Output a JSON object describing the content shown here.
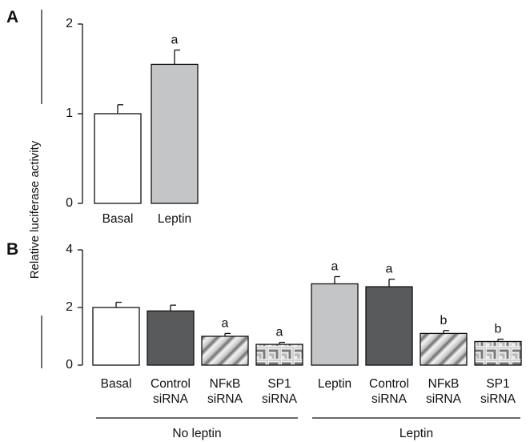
{
  "figure": {
    "ylabel": "Relative luciferase activity"
  },
  "chart_data": [
    {
      "type": "bar",
      "panel": "A",
      "title": "",
      "ylabel": "Relative luciferase activity",
      "ylim": [
        0,
        2
      ],
      "yticks": [
        "0",
        "1",
        "2"
      ],
      "grid": false,
      "categories": [
        "Basal",
        "Leptin"
      ],
      "values": [
        1.0,
        1.55
      ],
      "errors": [
        0.1,
        0.16
      ],
      "significance": [
        "",
        "a"
      ],
      "fills": [
        "white",
        "lightgray"
      ],
      "colors": {
        "white": "#ffffff",
        "lightgray": "#c4c5c7",
        "darkgray": "#595a5c",
        "axis": "#111111"
      }
    },
    {
      "type": "bar",
      "panel": "B",
      "title": "",
      "ylabel": "Relative luciferase activity",
      "ylim": [
        0,
        4
      ],
      "yticks": [
        "0",
        "2",
        "4"
      ],
      "grid": false,
      "categories": [
        [
          "Basal"
        ],
        [
          "Control",
          "siRNA"
        ],
        [
          "NFκB",
          "siRNA"
        ],
        [
          "SP1",
          "siRNA"
        ],
        [
          "Leptin"
        ],
        [
          "Control",
          "siRNA"
        ],
        [
          "NFκB",
          "siRNA"
        ],
        [
          "SP1",
          "siRNA"
        ]
      ],
      "values": [
        2.0,
        1.88,
        1.0,
        0.72,
        2.82,
        2.72,
        1.1,
        0.82
      ],
      "errors": [
        0.18,
        0.2,
        0.1,
        0.07,
        0.25,
        0.26,
        0.1,
        0.08
      ],
      "significance": [
        "",
        "",
        "a",
        "a",
        "a",
        "a",
        "b",
        "b"
      ],
      "fills": [
        "white",
        "darkgray",
        "stripe",
        "stepped",
        "lightgray",
        "darkgray",
        "stripe",
        "stepped"
      ],
      "groups": [
        {
          "label": "No leptin",
          "bars": [
            0,
            3
          ]
        },
        {
          "label": "Leptin",
          "bars": [
            4,
            7
          ]
        }
      ]
    }
  ]
}
